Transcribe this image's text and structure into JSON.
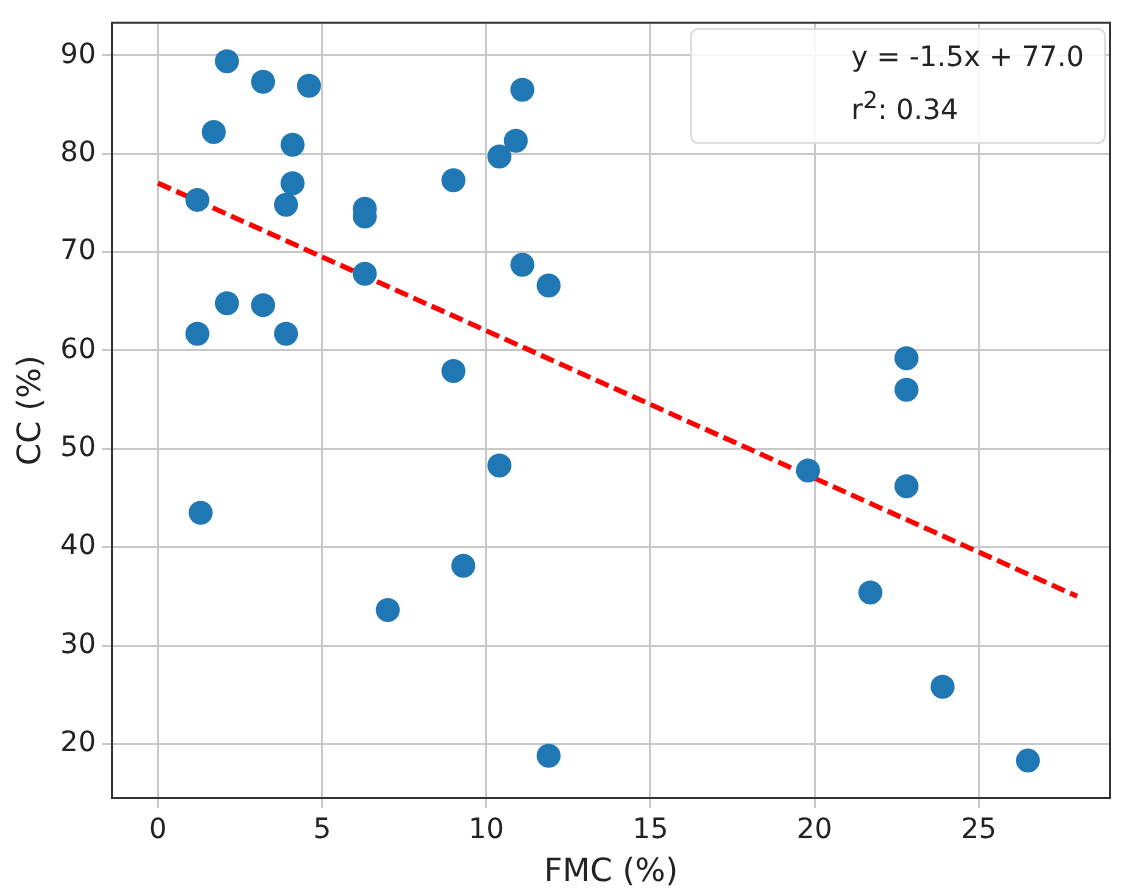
{
  "chart_data": {
    "type": "scatter",
    "xlabel": "FMC (%)",
    "ylabel": "CC (%)",
    "xlim": [
      -1.4,
      29.0
    ],
    "ylim": [
      14.5,
      93.3
    ],
    "xticks": [
      0,
      5,
      10,
      15,
      20,
      25
    ],
    "yticks": [
      20,
      30,
      40,
      50,
      60,
      70,
      80,
      90
    ],
    "grid": true,
    "marker": "circle",
    "annotations": [
      "y = -1.5x + 77.0",
      "r$^{2}$: 0.34"
    ],
    "series": [
      {
        "color": "#1f77b4",
        "x": [
          1.2,
          1.2,
          1.3,
          1.7,
          2.1,
          2.1,
          3.2,
          3.2,
          3.9,
          3.9,
          4.1,
          4.1,
          4.6,
          6.3,
          6.3,
          6.3,
          7.0,
          9.0,
          9.0,
          9.3,
          10.4,
          10.4,
          10.9,
          11.1,
          11.1,
          11.9,
          11.9,
          19.8,
          21.7,
          22.8,
          22.8,
          22.8,
          23.9,
          26.5
        ],
        "values": [
          75.3,
          61.7,
          43.5,
          82.2,
          89.4,
          64.8,
          87.3,
          64.6,
          74.8,
          61.7,
          80.9,
          77.0,
          86.9,
          74.4,
          73.6,
          67.8,
          33.6,
          77.3,
          57.9,
          38.1,
          79.7,
          48.3,
          81.3,
          86.5,
          68.7,
          66.6,
          18.8,
          47.8,
          35.4,
          59.2,
          56.0,
          46.2,
          25.8,
          18.3
        ]
      },
      {
        "type": "line",
        "color": "#ff0000",
        "line_style": "dashed",
        "marker": "none",
        "x": [
          0,
          28
        ],
        "values": [
          77.0,
          35.0
        ]
      }
    ]
  }
}
